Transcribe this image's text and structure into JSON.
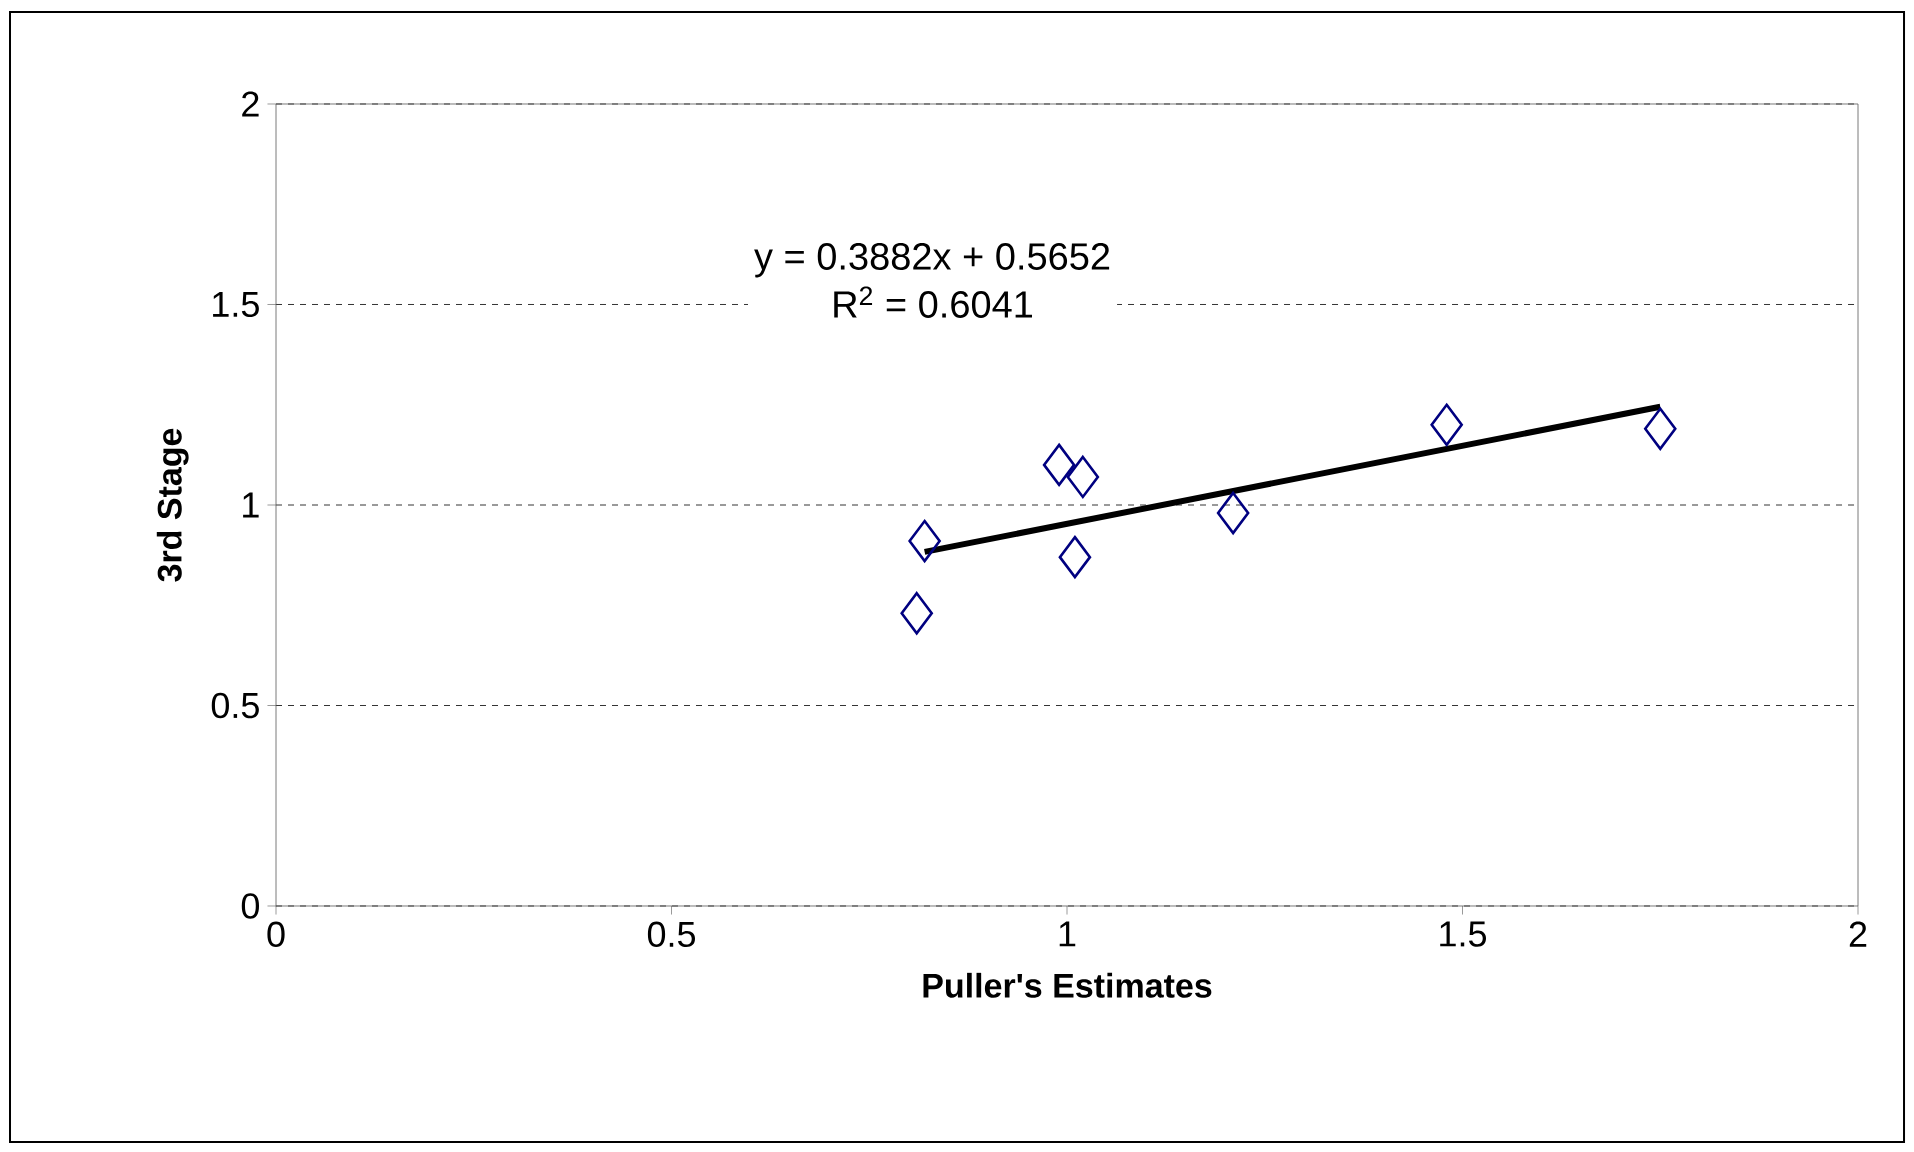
{
  "chart_data": {
    "type": "scatter",
    "xlabel": "Puller's Estimates",
    "ylabel": "3rd Stage",
    "xlim": [
      0,
      2
    ],
    "ylim": [
      0,
      2
    ],
    "xticks": [
      0,
      0.5,
      1,
      1.5,
      2
    ],
    "yticks": [
      0,
      0.5,
      1,
      1.5,
      2
    ],
    "grid": "y",
    "marker": "diamond",
    "series": [
      {
        "type": "scatter",
        "color": "#000080",
        "x": [
          0.81,
          0.82,
          0.99,
          1.02,
          1.01,
          1.21,
          1.48,
          1.75
        ],
        "values": [
          0.73,
          0.91,
          1.1,
          1.07,
          0.87,
          0.98,
          1.2,
          1.19
        ]
      },
      {
        "type": "line",
        "color": "#000000",
        "marker": "none",
        "x": [
          0.82,
          1.75
        ],
        "values": [
          0.883,
          1.245
        ]
      }
    ],
    "annotations": [
      "y = 0.3882x + 0.5652",
      "R$^{2}$ = 0.6041"
    ]
  }
}
